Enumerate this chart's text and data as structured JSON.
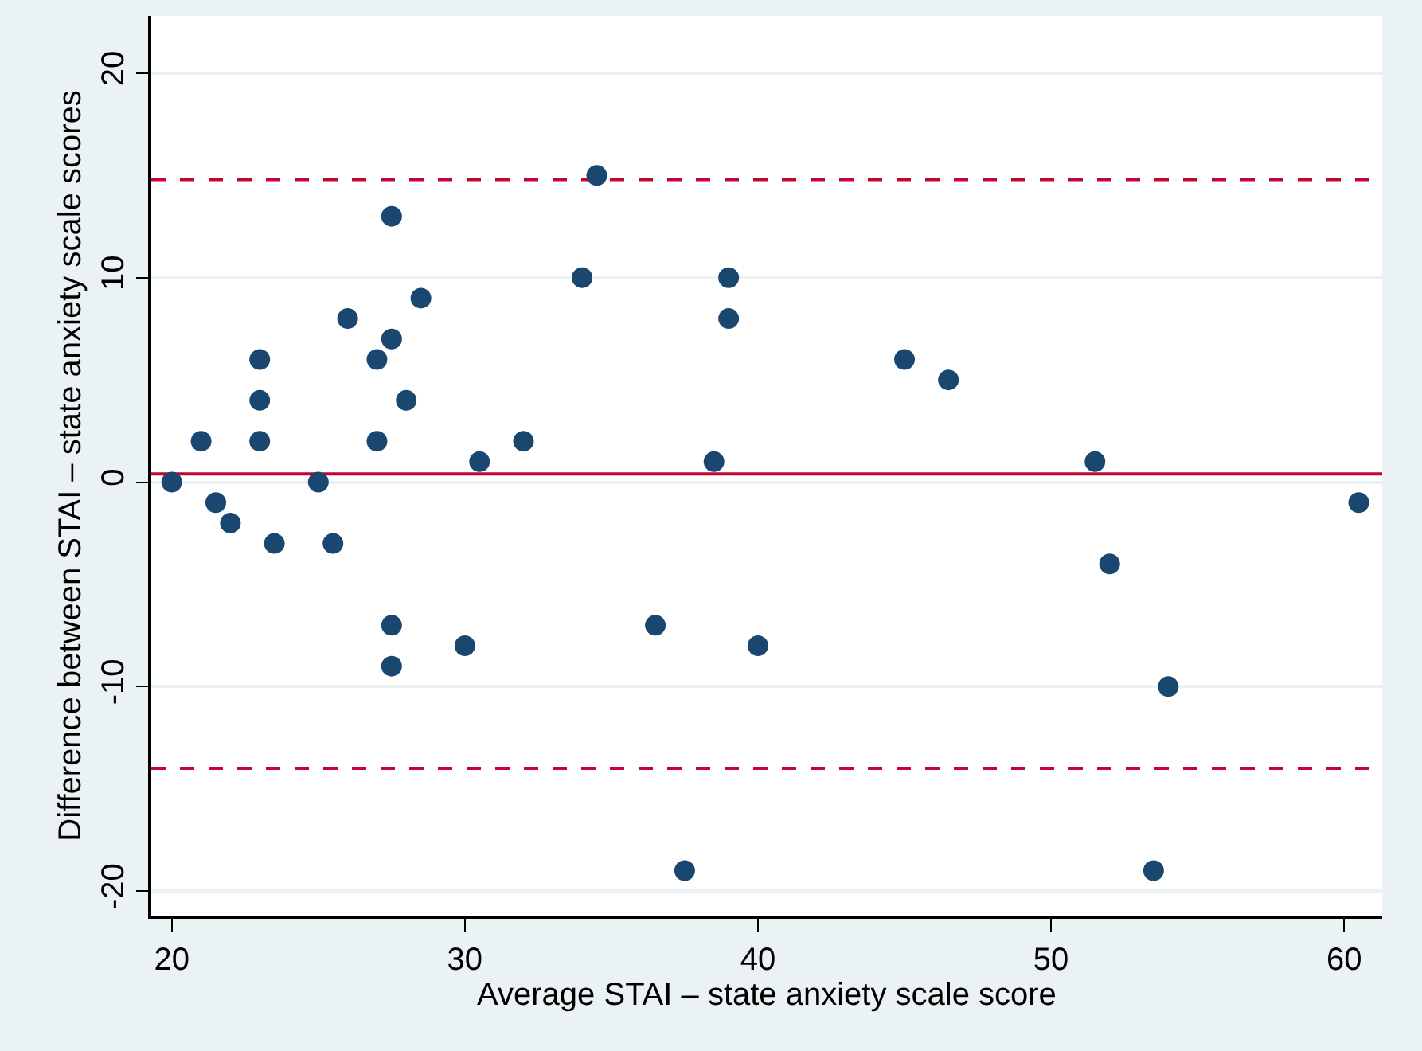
{
  "chart_data": {
    "type": "scatter",
    "xlabel": "Average STAI – state anxiety scale score",
    "ylabel": "Difference between STAI – state anxiety scale scores",
    "x": [
      20,
      21,
      21.5,
      22,
      23,
      23,
      23,
      23.5,
      25,
      25.5,
      26,
      27,
      27,
      27.5,
      27.5,
      27.5,
      27.5,
      28,
      28.5,
      30,
      30.5,
      32,
      34,
      34.5,
      36.5,
      37.5,
      38.5,
      39,
      39,
      40,
      45,
      46.5,
      51.5,
      52,
      53.5,
      54,
      60.5
    ],
    "series": [
      {
        "color": "#1a476f",
        "values": [
          0,
          2,
          -1,
          -2,
          6,
          4,
          2,
          -3,
          0,
          -3,
          8,
          6,
          2,
          13,
          7,
          -7,
          -9,
          4,
          9,
          -8,
          1,
          2,
          10,
          15,
          -7,
          -19,
          1,
          10,
          8,
          -8,
          6,
          5,
          1,
          -4,
          -19,
          -10,
          -1
        ]
      }
    ],
    "xlim": [
      19.3,
      61.3
    ],
    "ylim": [
      -21.2,
      22.8
    ],
    "xticks": [
      20,
      30,
      40,
      50,
      60
    ],
    "yticks": [
      -20,
      -10,
      0,
      10,
      20
    ],
    "ref_lines": [
      {
        "axis": "y",
        "value": 0.4,
        "color": "#c10534",
        "line_style": "solid"
      },
      {
        "axis": "y",
        "value": 14.8,
        "color": "#c10534",
        "line_style": "dashed"
      },
      {
        "axis": "y",
        "value": -14.0,
        "color": "#c10534",
        "line_style": "dashed"
      }
    ],
    "grid": "y",
    "marker": "circle"
  }
}
